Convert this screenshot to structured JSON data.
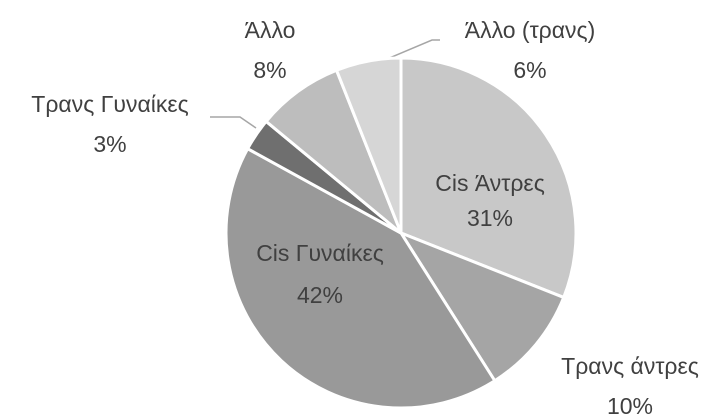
{
  "chart_data": {
    "type": "pie",
    "categories": [
      "Cis Άντρες",
      "Τρανς άντρες",
      "Cis Γυναίκες",
      "Τρανς Γυναίκες",
      "Άλλο",
      "Άλλο (τρανς)"
    ],
    "values": [
      31,
      10,
      42,
      3,
      8,
      6
    ],
    "value_labels": [
      "31%",
      "10%",
      "42%",
      "3%",
      "8%",
      "6%"
    ],
    "colors": [
      "#c8c8c8",
      "#a5a5a5",
      "#999999",
      "#6f6f6f",
      "#bdbdbd",
      "#d6d6d6"
    ]
  }
}
